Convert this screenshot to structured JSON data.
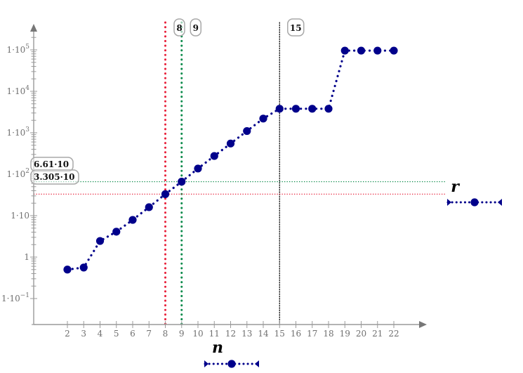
{
  "chart_data": {
    "type": "line",
    "title": "",
    "xlabel": "n",
    "ylabel": "",
    "yscale": "log",
    "xlim": [
      0,
      24
    ],
    "ylim": [
      0.03,
      300000
    ],
    "grid": false,
    "legend_position": "right",
    "x_ticks": [
      2,
      3,
      4,
      5,
      6,
      7,
      8,
      9,
      10,
      11,
      12,
      13,
      14,
      15,
      16,
      17,
      18,
      19,
      20,
      21,
      22
    ],
    "y_tick_labels": [
      {
        "label": "1·10⁵",
        "base": "1·10",
        "exp": "5",
        "value": 100000
      },
      {
        "label": "1·10⁴",
        "base": "1·10",
        "exp": "4",
        "value": 10000
      },
      {
        "label": "1·10³",
        "base": "1·10",
        "exp": "3",
        "value": 1000
      },
      {
        "label": "1·10²",
        "base": "1·10",
        "exp": "2",
        "value": 100
      },
      {
        "label": "1·10",
        "base": "1·10",
        "exp": "",
        "value": 10
      },
      {
        "label": "1",
        "base": "1",
        "exp": "",
        "value": 1
      },
      {
        "label": "1·10⁻¹",
        "base": "1·10",
        "exp": "−1",
        "value": 0.1
      }
    ],
    "series": [
      {
        "name": "r",
        "color": "#00008b",
        "line_style": "dotted",
        "marker": "circle",
        "x": [
          2,
          3,
          4,
          5,
          6,
          7,
          8,
          9,
          10,
          11,
          12,
          13,
          14,
          15,
          16,
          17,
          18,
          19,
          20,
          21,
          22
        ],
        "values": [
          0.5,
          0.56,
          2.45,
          4.1,
          7.9,
          16,
          33.05,
          66.1,
          137,
          275,
          550,
          1100,
          2200,
          3800,
          3800,
          3800,
          3800,
          96000,
          96000,
          96000,
          96000
        ]
      }
    ],
    "markers": {
      "vertical": [
        {
          "x": 8,
          "label": "8",
          "color": "#e8203a"
        },
        {
          "x": 9,
          "label": "9",
          "color": "#0a8a4a"
        },
        {
          "x": 15,
          "label": "15",
          "color": "#111111"
        }
      ],
      "horizontal": [
        {
          "y": 66.1,
          "label": "6.61·10",
          "color": "#0a8a4a"
        },
        {
          "y": 33.05,
          "label": "3.305·10",
          "color": "#e8203a"
        }
      ]
    },
    "legend": [
      {
        "name": "r",
        "position": "right"
      },
      {
        "name": "n",
        "position": "bottom"
      }
    ]
  },
  "labels": {
    "x_axis_title": "n",
    "y_series_title": "r"
  }
}
